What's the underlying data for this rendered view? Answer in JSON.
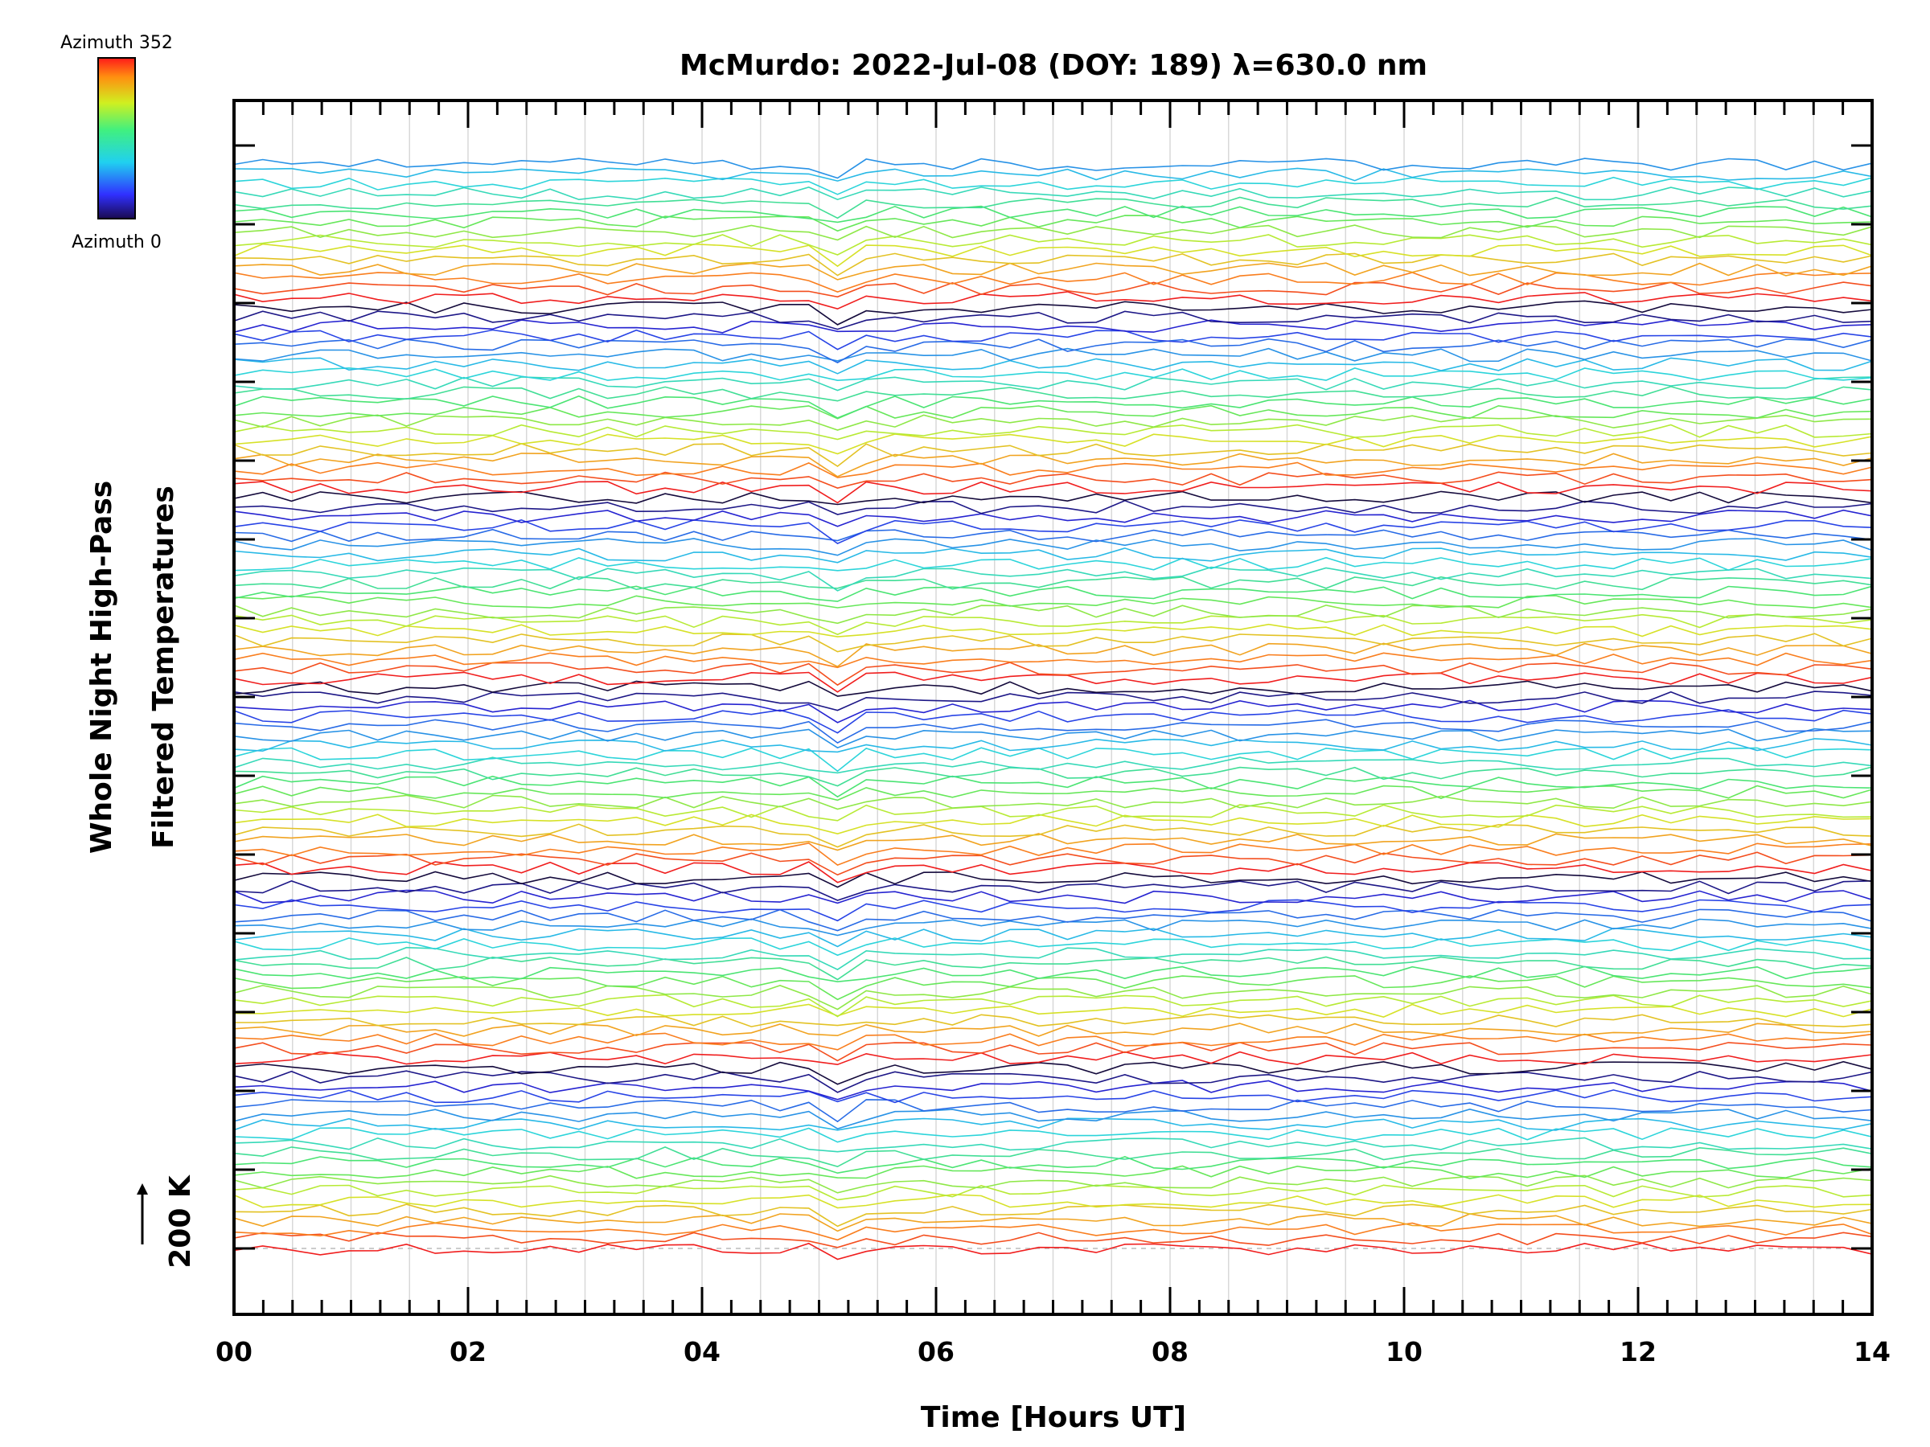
{
  "chart_data": {
    "type": "line",
    "title": "McMurdo: 2022-Jul-08 (DOY: 189) λ=630.0 nm",
    "xlabel": "Time [Hours UT]",
    "ylabel_line1": "Whole Night High-Pass",
    "ylabel_line2": "Filtered Temperatures",
    "scale_label": "200 K",
    "xlim": [
      0,
      14
    ],
    "x_ticks": [
      "00",
      "02",
      "04",
      "06",
      "08",
      "10",
      "12",
      "14"
    ],
    "grid": true,
    "colorbar": {
      "top_label": "Azimuth 352",
      "bottom_label": "Azimuth 0",
      "colormap": "rainbow",
      "range": [
        0,
        352
      ]
    },
    "series_count": 115,
    "series_spacing_note": "stacked traces with constant offset",
    "colors": {
      "line_dark": "#0a0a3a",
      "line_blue": "#2a2ad8",
      "line_cyan": "#30d8e0",
      "line_green": "#70e040",
      "line_yellow": "#e0e020",
      "line_orange": "#f07020",
      "line_red": "#e02020"
    }
  }
}
